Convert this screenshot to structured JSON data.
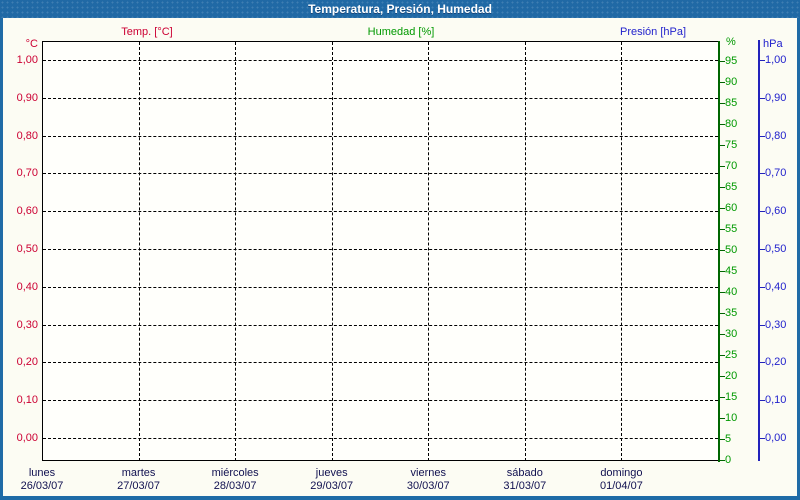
{
  "window": {
    "title": "Temperatura, Presión, Humedad"
  },
  "legend": [
    {
      "label": "Temp. [°C]",
      "color": "#cc0033"
    },
    {
      "label": "Humedad [%]",
      "color": "#009900"
    },
    {
      "label": "Presión [hPa]",
      "color": "#2222cc"
    }
  ],
  "axes": {
    "temperature": {
      "unit": "°C",
      "side": "left",
      "ticks": [
        "1,00",
        "0,90",
        "0,80",
        "0,70",
        "0,60",
        "0,50",
        "0,40",
        "0,30",
        "0,20",
        "0,10",
        "0,00"
      ]
    },
    "humidity": {
      "unit": "%",
      "side": "right-inner",
      "ticks": [
        "95",
        "90",
        "85",
        "80",
        "75",
        "70",
        "65",
        "60",
        "55",
        "50",
        "45",
        "40",
        "35",
        "30",
        "25",
        "20",
        "15",
        "10",
        "5",
        "0"
      ]
    },
    "pressure": {
      "unit": "hPa",
      "side": "right-outer",
      "ticks": [
        "1,00",
        "0,90",
        "0,80",
        "0,70",
        "0,60",
        "0,50",
        "0,40",
        "0,30",
        "0,20",
        "0,10",
        "0,00"
      ]
    }
  },
  "x_axis": {
    "days": [
      {
        "name": "lunes",
        "date": "26/03/07"
      },
      {
        "name": "martes",
        "date": "27/03/07"
      },
      {
        "name": "miércoles",
        "date": "28/03/07"
      },
      {
        "name": "jueves",
        "date": "29/03/07"
      },
      {
        "name": "viernes",
        "date": "30/03/07"
      },
      {
        "name": "sábado",
        "date": "31/03/07"
      },
      {
        "name": "domingo",
        "date": "01/04/07"
      }
    ]
  },
  "colors": {
    "titlebar_bg": "#2069a5",
    "title_text": "#ffffff",
    "window_border": "#1f6ba6",
    "background": "#fcfcf3",
    "plot_background": "#fffffb",
    "grid": "#000000",
    "temp": "#cc0033",
    "humidity_label": "#009900",
    "humidity_axis": "#006600",
    "pressure": "#2222cc",
    "pressure_axis": "#2222bb",
    "date_text": "#101050"
  },
  "chart_data": {
    "type": "line",
    "title": "Temperatura, Presión, Humedad",
    "x": {
      "day_names": [
        "lunes",
        "martes",
        "miércoles",
        "jueves",
        "viernes",
        "sábado",
        "domingo"
      ],
      "dates": [
        "26/03/07",
        "27/03/07",
        "28/03/07",
        "29/03/07",
        "30/03/07",
        "31/03/07",
        "01/04/07"
      ]
    },
    "y_axes": [
      {
        "id": "temperature",
        "label": "°C",
        "min": 0,
        "max": 1,
        "tick_step": 0.1,
        "side": "left",
        "color": "#cc0033"
      },
      {
        "id": "humidity",
        "label": "%",
        "min": 0,
        "max": 100,
        "tick_step": 5,
        "side": "right-inner",
        "color": "#009900"
      },
      {
        "id": "pressure",
        "label": "hPa",
        "min": 0,
        "max": 1,
        "tick_step": 0.1,
        "side": "right-outer",
        "color": "#2222cc"
      }
    ],
    "series": [
      {
        "name": "Temp. [°C]",
        "axis": "temperature",
        "color": "#cc0033",
        "values": []
      },
      {
        "name": "Humedad [%]",
        "axis": "humidity",
        "color": "#009900",
        "values": []
      },
      {
        "name": "Presión [hPa]",
        "axis": "pressure",
        "color": "#2222cc",
        "values": []
      }
    ],
    "grid": true,
    "legend_position": "top",
    "note": "empty plot area — no data drawn for the displayed period"
  }
}
